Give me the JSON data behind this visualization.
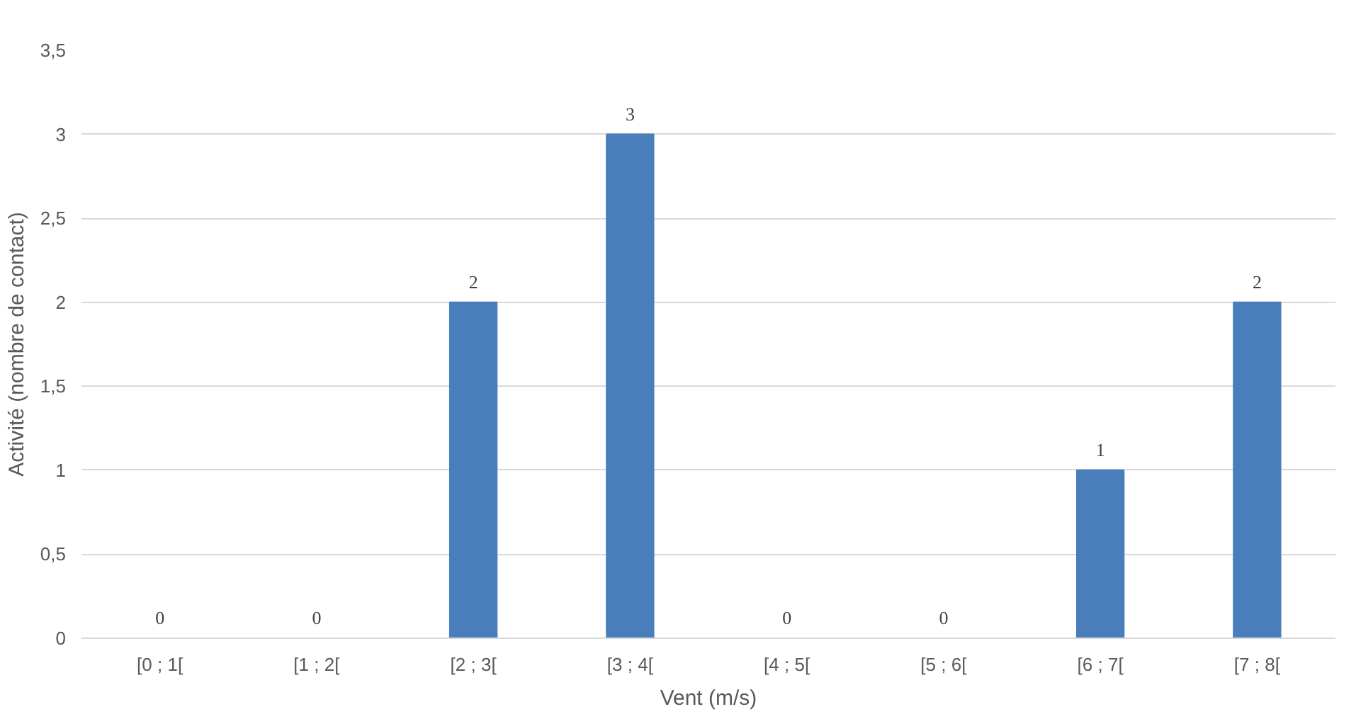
{
  "chart_data": {
    "type": "bar",
    "xlabel": "Vent (m/s)",
    "ylabel": "Activité (nombre de contact)",
    "categories": [
      "[0 ; 1[",
      "[1 ; 2[",
      "[2 ; 3[",
      "[3 ; 4[",
      "[4 ; 5[",
      "[5 ; 6[",
      "[6 ; 7[",
      "[7 ; 8["
    ],
    "values": [
      0,
      0,
      2,
      3,
      0,
      0,
      1,
      2
    ],
    "color": "#4a7ebb",
    "ylim": [
      0,
      3.5
    ],
    "yticks": [
      0,
      {
        "value": 0.5,
        "label": "0,5"
      },
      1,
      {
        "value": 1.5,
        "label": "1,5"
      },
      2,
      {
        "value": 2.5,
        "label": "2,5"
      },
      3,
      {
        "value": 3.5,
        "label": "3,5"
      }
    ],
    "grid": "y",
    "data_labels": true
  }
}
